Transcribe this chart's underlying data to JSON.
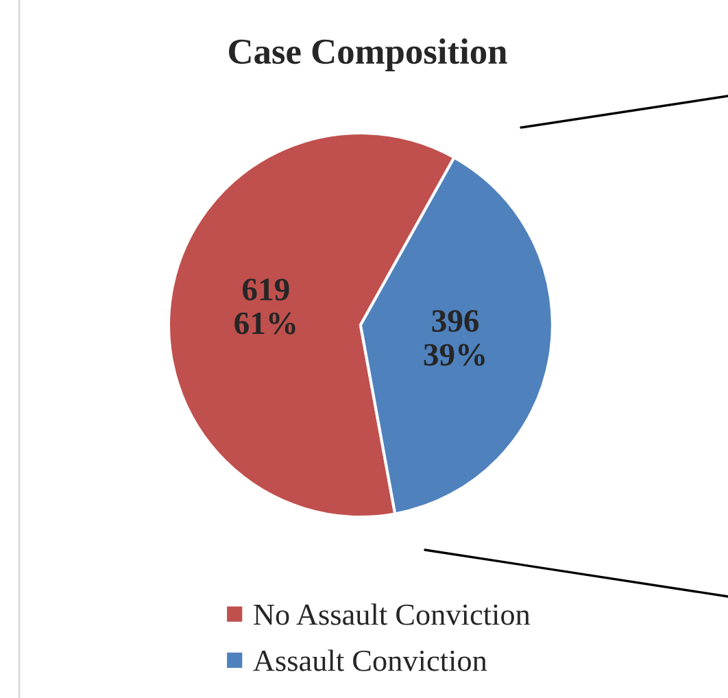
{
  "chart_data": {
    "type": "pie",
    "title": "Case Composition",
    "categories": [
      "No Assault Conviction",
      "Assault Conviction"
    ],
    "values": [
      619,
      396
    ],
    "colors": [
      "#c0504d",
      "#4f81bd"
    ],
    "value_labels": [
      "619\n61%",
      "396\n39%"
    ],
    "legend": "bottom"
  }
}
